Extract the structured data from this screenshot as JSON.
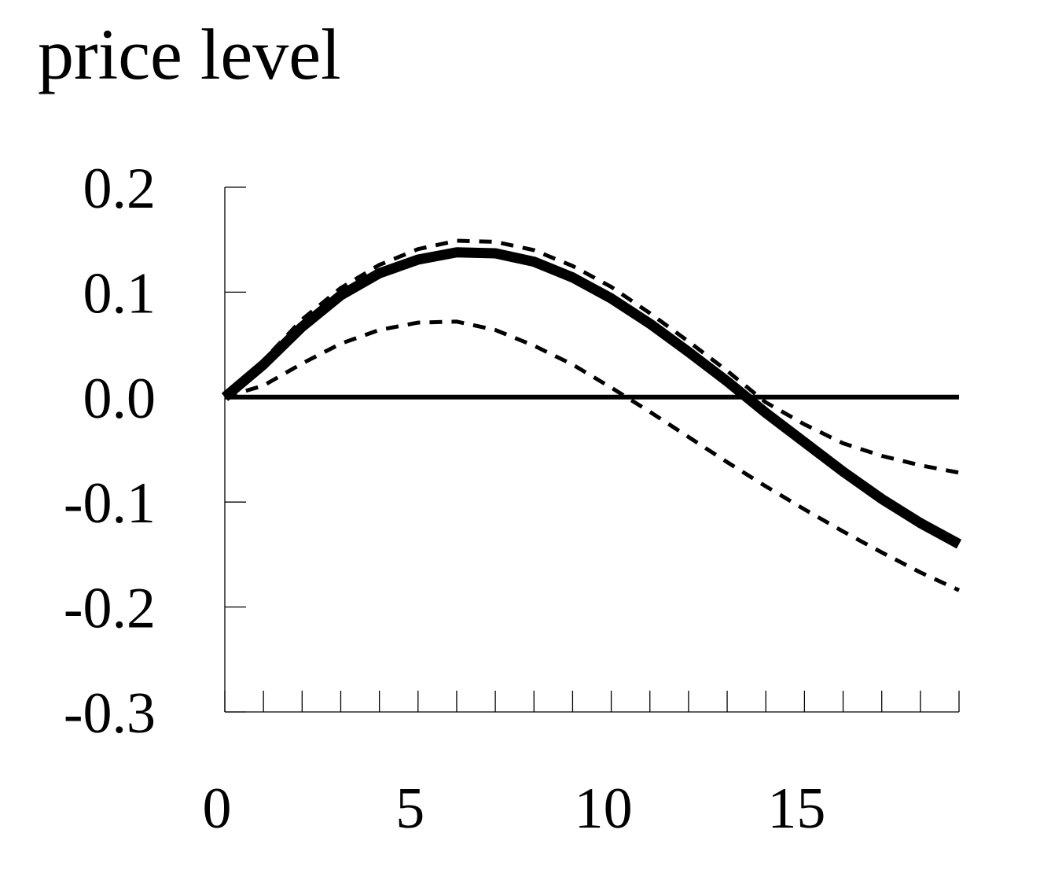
{
  "chart_data": {
    "type": "line",
    "title": "price level",
    "xlabel": "",
    "ylabel": "",
    "xlim": [
      0,
      19
    ],
    "ylim": [
      -0.3,
      0.2
    ],
    "x_ticks": [
      0,
      5,
      10,
      15
    ],
    "x_tick_labels": [
      "0",
      "5",
      "10",
      "15"
    ],
    "y_ticks": [
      0.2,
      0.1,
      0.0,
      -0.1,
      -0.2,
      -0.3
    ],
    "y_tick_labels": [
      "0.2",
      "0.1",
      "0.0",
      "-0.1",
      "-0.2",
      "-0.3"
    ],
    "grid": false,
    "legend": "none",
    "x": [
      0,
      1,
      2,
      3,
      4,
      5,
      6,
      7,
      8,
      9,
      10,
      11,
      12,
      13,
      14,
      15,
      16,
      17,
      18,
      19
    ],
    "series": [
      {
        "style": "solid-thick",
        "color": "#000000",
        "values": [
          0.0,
          0.031,
          0.067,
          0.097,
          0.118,
          0.131,
          0.138,
          0.137,
          0.129,
          0.114,
          0.094,
          0.07,
          0.043,
          0.015,
          -0.015,
          -0.043,
          -0.071,
          -0.097,
          -0.12,
          -0.14
        ]
      },
      {
        "style": "dashed",
        "color": "#000000",
        "values": [
          0.0,
          0.035,
          0.074,
          0.104,
          0.126,
          0.141,
          0.149,
          0.148,
          0.14,
          0.125,
          0.105,
          0.08,
          0.053,
          0.025,
          -0.005,
          -0.026,
          -0.044,
          -0.056,
          -0.065,
          -0.072
        ]
      },
      {
        "style": "dashed",
        "color": "#000000",
        "values": [
          0.0,
          0.011,
          0.032,
          0.051,
          0.064,
          0.071,
          0.072,
          0.064,
          0.049,
          0.031,
          0.009,
          -0.014,
          -0.038,
          -0.062,
          -0.085,
          -0.107,
          -0.128,
          -0.148,
          -0.167,
          -0.184
        ]
      }
    ],
    "reference_lines": [
      {
        "axis": "y",
        "value": 0.0,
        "style": "solid",
        "color": "#000000"
      }
    ]
  }
}
